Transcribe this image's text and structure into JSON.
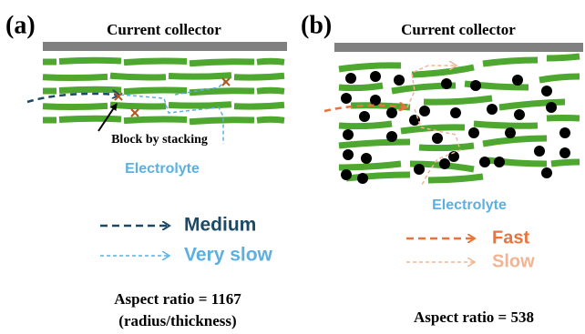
{
  "panel_a": {
    "label": "(a)",
    "collector": "Current collector",
    "block_note": "Block by stacking",
    "electrolyte": "Electrolyte",
    "legend": [
      "Medium",
      "Very slow"
    ],
    "aspect": "Aspect ratio = 1167",
    "aspect_note": "(radius/thickness)"
  },
  "panel_b": {
    "label": "(b)",
    "collector": "Current collector",
    "electrolyte": "Electrolyte",
    "legend": [
      "Fast",
      "Slow"
    ],
    "aspect": "Aspect ratio = 538"
  }
}
